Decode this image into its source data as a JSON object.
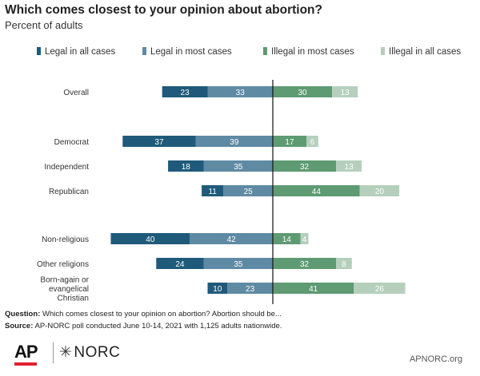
{
  "header": {
    "title": "Which comes closest to your opinion about abortion?",
    "subtitle": "Percent of adults"
  },
  "legend": [
    {
      "label": "Legal in all cases",
      "color": "#1f5a7a"
    },
    {
      "label": "Legal in most cases",
      "color": "#5f8aa3"
    },
    {
      "label": "Illegal in most cases",
      "color": "#5e9a72"
    },
    {
      "label": "Illegal in all cases",
      "color": "#b5cfbc"
    }
  ],
  "chart_data": {
    "type": "bar",
    "orientation": "horizontal",
    "stacking": "diverging",
    "categories": [
      "Overall",
      "Democrat",
      "Independent",
      "Republican",
      "Non-religious",
      "Other religions",
      "Born-again or evangelical Christian"
    ],
    "series": [
      {
        "name": "Legal in all cases",
        "side": "left",
        "color": "#1f5a7a",
        "values": [
          23,
          37,
          18,
          11,
          40,
          24,
          10
        ]
      },
      {
        "name": "Legal in most cases",
        "side": "left",
        "color": "#5f8aa3",
        "values": [
          33,
          39,
          35,
          25,
          42,
          35,
          23
        ]
      },
      {
        "name": "Illegal in most cases",
        "side": "right",
        "color": "#5e9a72",
        "values": [
          30,
          17,
          32,
          44,
          14,
          32,
          41
        ]
      },
      {
        "name": "Illegal in all cases",
        "side": "right",
        "color": "#b5cfbc",
        "values": [
          13,
          6,
          13,
          20,
          4,
          8,
          26
        ]
      }
    ],
    "grid": false,
    "legend_position": "top"
  },
  "footer": {
    "question_label": "Question:",
    "question_text": "Which comes closest to your opinion on abortion? Abortion should be...",
    "source_label": "Source:",
    "source_text": "AP-NORC poll conducted June 10-14, 2021 with 1,125 adults nationwide."
  },
  "branding": {
    "ap_logo": "AP",
    "norc_logo": "NORC",
    "website": "APNORC.org"
  }
}
